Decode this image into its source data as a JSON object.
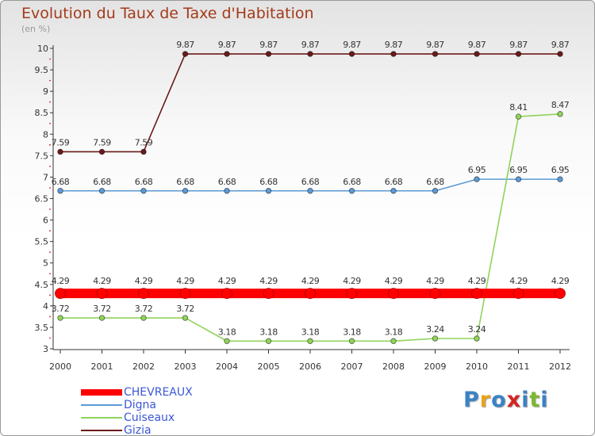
{
  "title": "Evolution du Taux de Taxe d'Habitation",
  "subtitle": "(en %)",
  "logo": [
    "P",
    "r",
    "o",
    "x",
    "i",
    "t",
    "i"
  ],
  "logo_colors": [
    "#3b82c4",
    "#e8a21a",
    "#3b82c4",
    "#d42424",
    "#3b82c4",
    "#7cb82f",
    "#3b82c4"
  ],
  "chart_data": {
    "type": "line",
    "categories": [
      "2000",
      "2001",
      "2002",
      "2003",
      "2004",
      "2005",
      "2006",
      "2007",
      "2008",
      "2009",
      "2010",
      "2011",
      "2012"
    ],
    "ylim": [
      3,
      10
    ],
    "yticks": [
      "3",
      "3.5",
      "4",
      "4.5",
      "5",
      "5.5",
      "6",
      "6.5",
      "7",
      "7.5",
      "8",
      "8.5",
      "9",
      "9.5",
      "10"
    ],
    "grid": false,
    "legend_position": "bottom-left",
    "series": [
      {
        "name": "CHEVREAUX",
        "color": "#ff0000",
        "values": [
          4.29,
          4.29,
          4.29,
          4.29,
          4.29,
          4.29,
          4.29,
          4.29,
          4.29,
          4.29,
          4.29,
          4.29,
          4.29
        ],
        "labels": [
          "4.29",
          "4.29",
          "4.29",
          "4.29",
          "4.29",
          "4.29",
          "4.29",
          "4.29",
          "4.29",
          "4.29",
          "4.29",
          "4.29",
          "4.29"
        ]
      },
      {
        "name": "Digna",
        "color": "#5b9bd5",
        "values": [
          6.68,
          6.68,
          6.68,
          6.68,
          6.68,
          6.68,
          6.68,
          6.68,
          6.68,
          6.68,
          6.95,
          6.95,
          6.95
        ],
        "labels": [
          "6.68",
          "6.68",
          "6.68",
          "6.68",
          "6.68",
          "6.68",
          "6.68",
          "6.68",
          "6.68",
          "6.68",
          "6.95",
          "6.95",
          "6.95"
        ]
      },
      {
        "name": "Cuiseaux",
        "color": "#8fd45a",
        "values": [
          3.72,
          3.72,
          3.72,
          3.72,
          3.18,
          3.18,
          3.18,
          3.18,
          3.18,
          3.24,
          3.24,
          8.41,
          8.47
        ],
        "labels": [
          "3.72",
          "3.72",
          "3.72",
          "3.72",
          "3.18",
          "3.18",
          "3.18",
          "3.18",
          "3.18",
          "3.24",
          "3.24",
          "8.41",
          "8.47"
        ]
      },
      {
        "name": "Gizia",
        "color": "#6b1a1a",
        "values": [
          7.59,
          7.59,
          7.59,
          9.87,
          9.87,
          9.87,
          9.87,
          9.87,
          9.87,
          9.87,
          9.87,
          9.87,
          9.87
        ],
        "labels": [
          "7.59",
          "7.59",
          "7.59",
          "9.87",
          "9.87",
          "9.87",
          "9.87",
          "9.87",
          "9.87",
          "9.87",
          "9.87",
          "9.87",
          "9.87"
        ]
      }
    ]
  }
}
